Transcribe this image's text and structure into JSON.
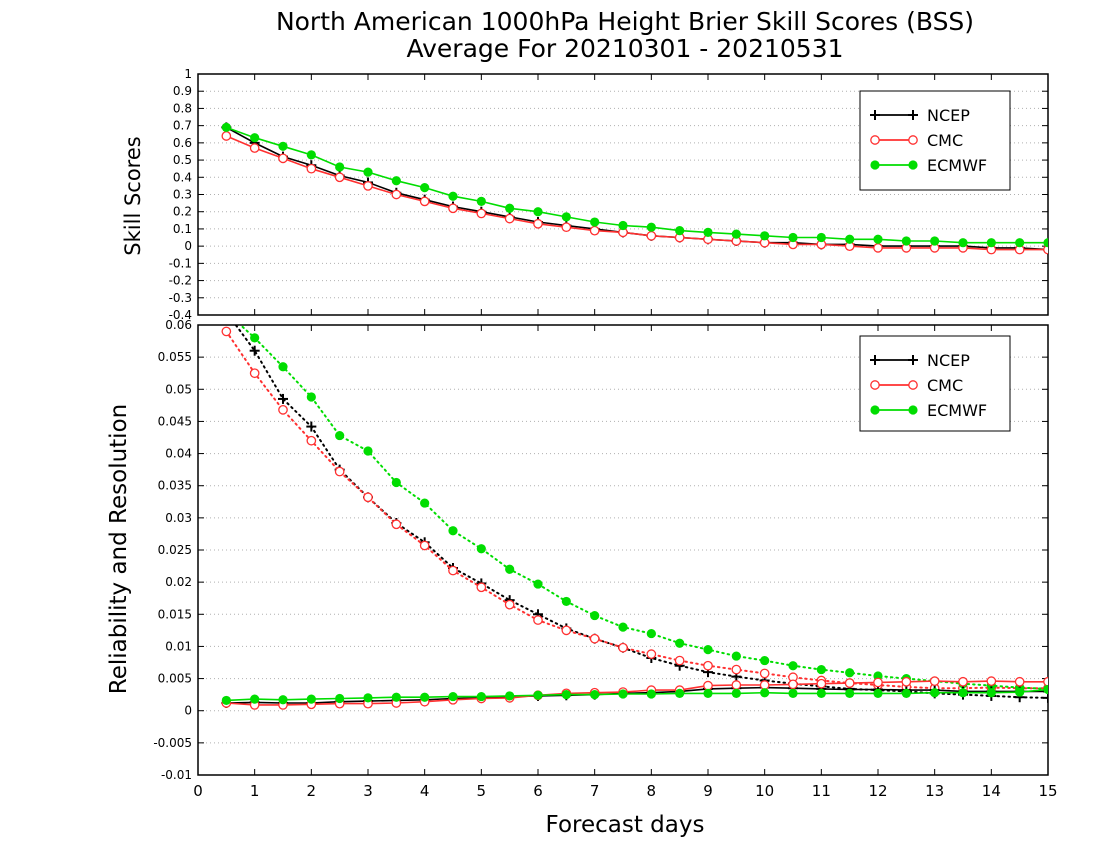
{
  "title_line1": "North American 1000hPa Height Brier Skill Scores (BSS)",
  "title_line2": "Average For 20210301 - 20210531",
  "xlabel": "Forecast days",
  "legend": [
    {
      "name": "NCEP",
      "color": "#000000",
      "marker": "plus"
    },
    {
      "name": "CMC",
      "color": "#ff3030",
      "marker": "open-circle"
    },
    {
      "name": "ECMWF",
      "color": "#00dd00",
      "marker": "filled-circle"
    }
  ],
  "chart_data": [
    {
      "type": "line",
      "ylabel": "Skill Scores",
      "xlim": [
        0,
        15
      ],
      "ylim": [
        -0.4,
        1
      ],
      "xticks": [
        "0",
        "1",
        "2",
        "3",
        "4",
        "5",
        "6",
        "7",
        "8",
        "9",
        "10",
        "11",
        "12",
        "13",
        "14",
        "15"
      ],
      "yticks": [
        "-0.4",
        "-0.3",
        "-0.2",
        "-0.1",
        "0",
        "0.1",
        "0.2",
        "0.3",
        "0.4",
        "0.5",
        "0.6",
        "0.7",
        "0.8",
        "0.9",
        "1"
      ],
      "grid": true,
      "legend_position": "top-right",
      "x": [
        0.5,
        1,
        1.5,
        2,
        2.5,
        3,
        3.5,
        4,
        4.5,
        5,
        5.5,
        6,
        6.5,
        7,
        7.5,
        8,
        8.5,
        9,
        9.5,
        10,
        10.5,
        11,
        11.5,
        12,
        12.5,
        13,
        13.5,
        14,
        14.5,
        15
      ],
      "series": [
        {
          "name": "NCEP",
          "values": [
            0.69,
            0.6,
            0.52,
            0.47,
            0.41,
            0.37,
            0.31,
            0.27,
            0.23,
            0.2,
            0.17,
            0.14,
            0.12,
            0.1,
            0.08,
            0.06,
            0.05,
            0.04,
            0.03,
            0.02,
            0.02,
            0.01,
            0.01,
            0.0,
            0.0,
            0.0,
            0.0,
            -0.01,
            -0.01,
            -0.02
          ]
        },
        {
          "name": "CMC",
          "values": [
            0.64,
            0.57,
            0.51,
            0.45,
            0.4,
            0.35,
            0.3,
            0.26,
            0.22,
            0.19,
            0.16,
            0.13,
            0.11,
            0.09,
            0.08,
            0.06,
            0.05,
            0.04,
            0.03,
            0.02,
            0.01,
            0.01,
            0.0,
            -0.01,
            -0.01,
            -0.01,
            -0.01,
            -0.02,
            -0.02,
            -0.02
          ]
        },
        {
          "name": "ECMWF",
          "values": [
            0.69,
            0.63,
            0.58,
            0.53,
            0.46,
            0.43,
            0.38,
            0.34,
            0.29,
            0.26,
            0.22,
            0.2,
            0.17,
            0.14,
            0.12,
            0.11,
            0.09,
            0.08,
            0.07,
            0.06,
            0.05,
            0.05,
            0.04,
            0.04,
            0.03,
            0.03,
            0.02,
            0.02,
            0.02,
            0.02
          ]
        }
      ]
    },
    {
      "type": "line",
      "ylabel": "Reliability and Resolution",
      "xlim": [
        0,
        15
      ],
      "ylim": [
        -0.01,
        0.06
      ],
      "xticks": [
        "0",
        "1",
        "2",
        "3",
        "4",
        "5",
        "6",
        "7",
        "8",
        "9",
        "10",
        "11",
        "12",
        "13",
        "14",
        "15"
      ],
      "yticks": [
        "-0.01",
        "-0.005",
        "0",
        "0.005",
        "0.01",
        "0.015",
        "0.02",
        "0.025",
        "0.03",
        "0.035",
        "0.04",
        "0.045",
        "0.05",
        "0.055",
        "0.06"
      ],
      "grid": true,
      "legend_position": "top-right",
      "x": [
        0.5,
        1,
        1.5,
        2,
        2.5,
        3,
        3.5,
        4,
        4.5,
        5,
        5.5,
        6,
        6.5,
        7,
        7.5,
        8,
        8.5,
        9,
        9.5,
        10,
        10.5,
        11,
        11.5,
        12,
        12.5,
        13,
        13.5,
        14,
        14.5,
        15
      ],
      "series": [
        {
          "name": "NCEP",
          "component": "resolution",
          "style": "dotted",
          "values": [
            0.062,
            0.056,
            0.0485,
            0.0442,
            0.0375,
            0.0332,
            0.0292,
            0.0262,
            0.0222,
            0.0198,
            0.0172,
            0.015,
            0.0128,
            0.0112,
            0.0098,
            0.0082,
            0.007,
            0.006,
            0.0053,
            0.0047,
            0.0042,
            0.0038,
            0.0034,
            0.0032,
            0.003,
            0.0027,
            0.0025,
            0.0023,
            0.0021,
            0.002
          ]
        },
        {
          "name": "CMC",
          "component": "resolution",
          "style": "dotted",
          "values": [
            0.059,
            0.0525,
            0.0468,
            0.042,
            0.0372,
            0.0332,
            0.029,
            0.0257,
            0.0218,
            0.0192,
            0.0165,
            0.0141,
            0.0125,
            0.0112,
            0.0098,
            0.0088,
            0.0078,
            0.007,
            0.0064,
            0.0058,
            0.0052,
            0.0047,
            0.0043,
            0.004,
            0.0037,
            0.0035,
            0.0035,
            0.0036,
            0.0035,
            0.0035
          ]
        },
        {
          "name": "ECMWF",
          "component": "resolution",
          "style": "dotted",
          "values": [
            0.062,
            0.058,
            0.0535,
            0.0488,
            0.0428,
            0.0404,
            0.0355,
            0.0323,
            0.028,
            0.0252,
            0.022,
            0.0197,
            0.017,
            0.0148,
            0.013,
            0.012,
            0.0105,
            0.0095,
            0.0085,
            0.0078,
            0.007,
            0.0064,
            0.0059,
            0.0054,
            0.005,
            0.0046,
            0.0042,
            0.0039,
            0.0036,
            0.0034
          ]
        },
        {
          "name": "NCEP",
          "component": "reliability",
          "style": "solid",
          "values": [
            0.0012,
            0.0013,
            0.0012,
            0.0012,
            0.0014,
            0.0015,
            0.0016,
            0.0017,
            0.0019,
            0.002,
            0.0022,
            0.0023,
            0.0024,
            0.0025,
            0.0027,
            0.0028,
            0.003,
            0.0034,
            0.0035,
            0.0036,
            0.0035,
            0.0034,
            0.0033,
            0.0033,
            0.0032,
            0.0032,
            0.003,
            0.003,
            0.003,
            0.003
          ]
        },
        {
          "name": "CMC",
          "component": "reliability",
          "style": "solid",
          "values": [
            0.0012,
            0.0009,
            0.0009,
            0.001,
            0.0011,
            0.0011,
            0.0012,
            0.0014,
            0.0017,
            0.0019,
            0.002,
            0.0024,
            0.0027,
            0.0028,
            0.0029,
            0.0032,
            0.0032,
            0.0039,
            0.004,
            0.004,
            0.0041,
            0.0042,
            0.0043,
            0.0044,
            0.0045,
            0.0046,
            0.0045,
            0.0046,
            0.0045,
            0.0045
          ]
        },
        {
          "name": "ECMWF",
          "component": "reliability",
          "style": "solid",
          "values": [
            0.0016,
            0.0018,
            0.0017,
            0.0018,
            0.0019,
            0.002,
            0.0021,
            0.0021,
            0.0022,
            0.0022,
            0.0023,
            0.0024,
            0.0025,
            0.0025,
            0.0026,
            0.0026,
            0.0027,
            0.0027,
            0.0027,
            0.0028,
            0.0027,
            0.0027,
            0.0027,
            0.0027,
            0.0027,
            0.0028,
            0.0028,
            0.0028,
            0.0029,
            0.0033
          ]
        }
      ]
    }
  ]
}
